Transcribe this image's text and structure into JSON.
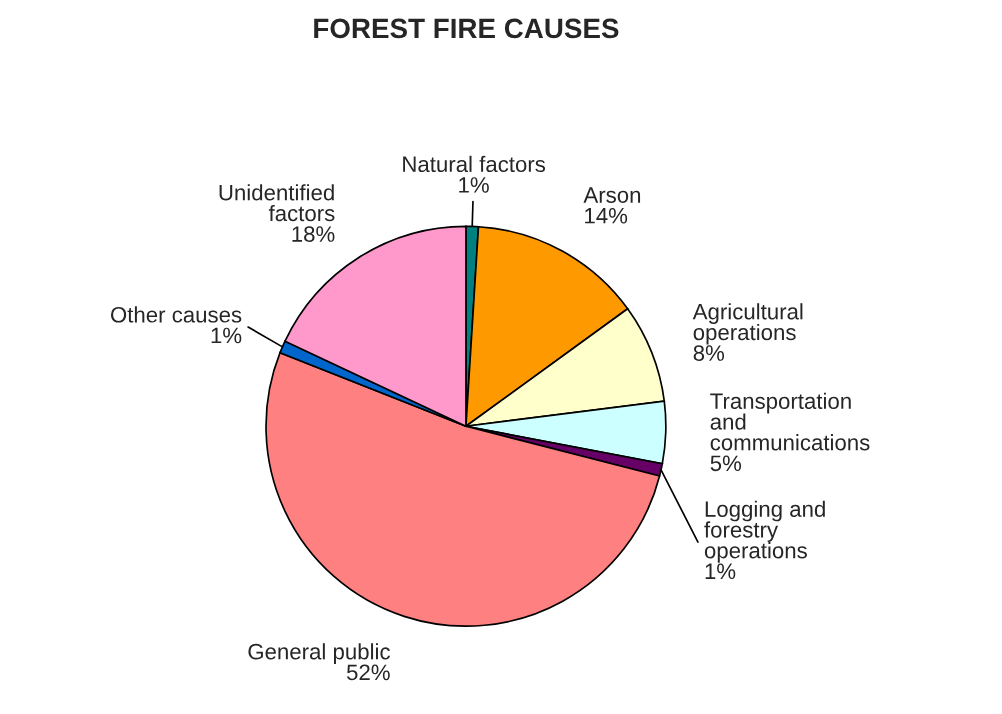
{
  "chart_data": {
    "type": "pie",
    "title": "FOREST FIRE CAUSES",
    "categories": [
      "Natural factors",
      "Arson",
      "Agricultural\noperations",
      "Transportation\nand\ncommunications",
      "Logging and\nforestry\noperations",
      "General public",
      "Other causes",
      "Unidentified\nfactors"
    ],
    "values": [
      1,
      14,
      8,
      5,
      1,
      52,
      1,
      18
    ],
    "value_labels": [
      "1%",
      "14%",
      "8%",
      "5%",
      "1%",
      "52%",
      "1%",
      "18%"
    ],
    "colors": [
      "#008080",
      "#ff9900",
      "#ffffcc",
      "#ccffff",
      "#660066",
      "#ff8080",
      "#0066cc",
      "#ff99cc"
    ],
    "legend": false
  }
}
